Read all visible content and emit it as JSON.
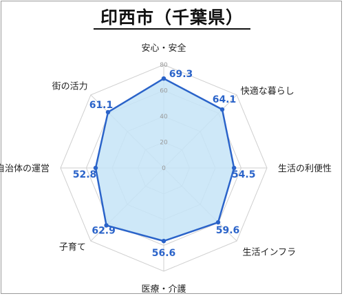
{
  "title": "印西市（千葉県）",
  "chart_data": {
    "type": "radar",
    "axes": [
      "安心・安全",
      "快適な暮らし",
      "生活の利便性",
      "生活インフラ",
      "医療・介護",
      "子育て",
      "自治体の運営",
      "街の活力"
    ],
    "values": [
      69.3,
      64.1,
      54.5,
      59.6,
      56.6,
      62.9,
      52.8,
      61.1
    ],
    "value_labels": [
      "69.3",
      "64.1",
      "54.5",
      "59.6",
      "56.6",
      "62.9",
      "52.8",
      "61.1"
    ],
    "rlim": [
      0,
      80
    ],
    "ticks": [
      "0",
      "20",
      "40",
      "60",
      "80"
    ],
    "grid": true,
    "colors": {
      "line": "#2a63c9",
      "fill": "#c6e4f7",
      "grid": "#cfcfcf",
      "label": "#2a63c9"
    }
  }
}
